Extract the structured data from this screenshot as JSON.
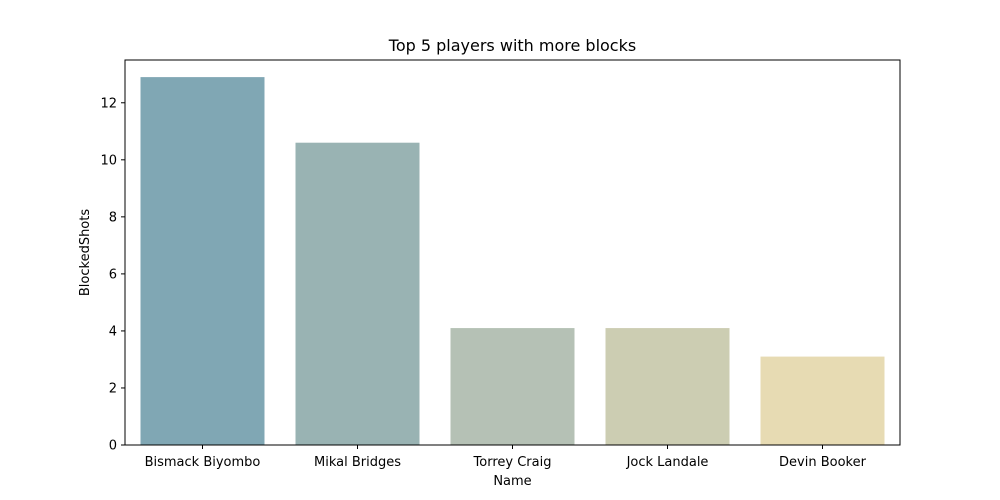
{
  "chart_data": {
    "type": "bar",
    "title": "Top 5 players with more blocks",
    "xlabel": "Name",
    "ylabel": "BlockedShots",
    "categories": [
      "Bismack Biyombo",
      "Mikal Bridges",
      "Torrey Craig",
      "Jock Landale",
      "Devin Booker"
    ],
    "values": [
      12.9,
      10.6,
      4.1,
      4.1,
      3.1
    ],
    "colors": [
      "#80a7b4",
      "#99b3b3",
      "#b5c1b5",
      "#cccdb2",
      "#e7dbb3"
    ],
    "ylim": [
      0,
      13.5
    ],
    "yticks": [
      0,
      2,
      4,
      6,
      8,
      10,
      12
    ],
    "grid": false,
    "legend": "none"
  }
}
